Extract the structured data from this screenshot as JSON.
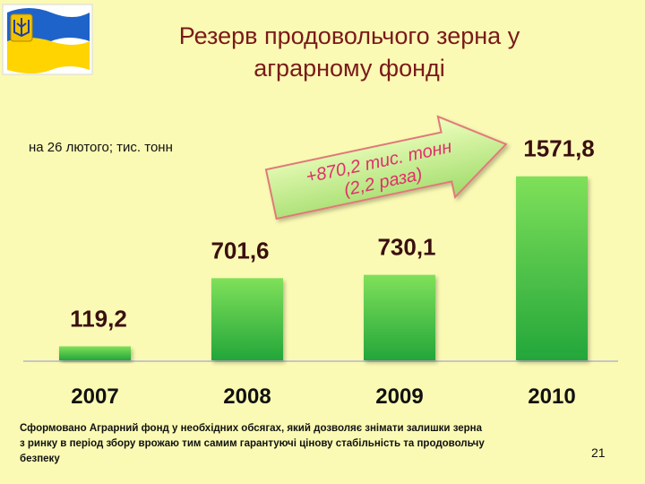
{
  "slide": {
    "title_line1": "Резерв продовольчого зерна у",
    "title_line2": "аграрному фонді",
    "subtitle": "на 26 лютого; тис. тонн",
    "arrow_line1": "+870,2 тис. тонн",
    "arrow_line2": "(2,2 раза)",
    "footnote_line1": "Сформовано Аграрний фонд у необхідних обсягах, який дозволяє знімати залишки зерна",
    "footnote_line2": "з ринку в період збору врожаю тим самим гарантуючі цінову стабільність та продовольчу",
    "footnote_line3": "безпеку",
    "page_number": "21"
  },
  "colors": {
    "background": "#fafab4",
    "bar_top": "#7fe05a",
    "bar_bottom": "#23a63a",
    "arrow_top": "#f0ffbf",
    "arrow_bottom": "#9fdb6a",
    "title": "#7a1a1a",
    "flag_blue": "#1e63c9",
    "flag_yellow": "#ffd400"
  },
  "icons": {
    "emblem": "ukraine-flag-trident-icon"
  },
  "chart_data": {
    "type": "bar",
    "categories": [
      "2007",
      "2008",
      "2009",
      "2010"
    ],
    "values": [
      119.2,
      701.6,
      730.1,
      1571.8
    ],
    "value_labels": [
      "119,2",
      "701,6",
      "730,1",
      "1571,8"
    ],
    "ylim": [
      0,
      1700
    ],
    "grid": false,
    "legend": "none"
  }
}
